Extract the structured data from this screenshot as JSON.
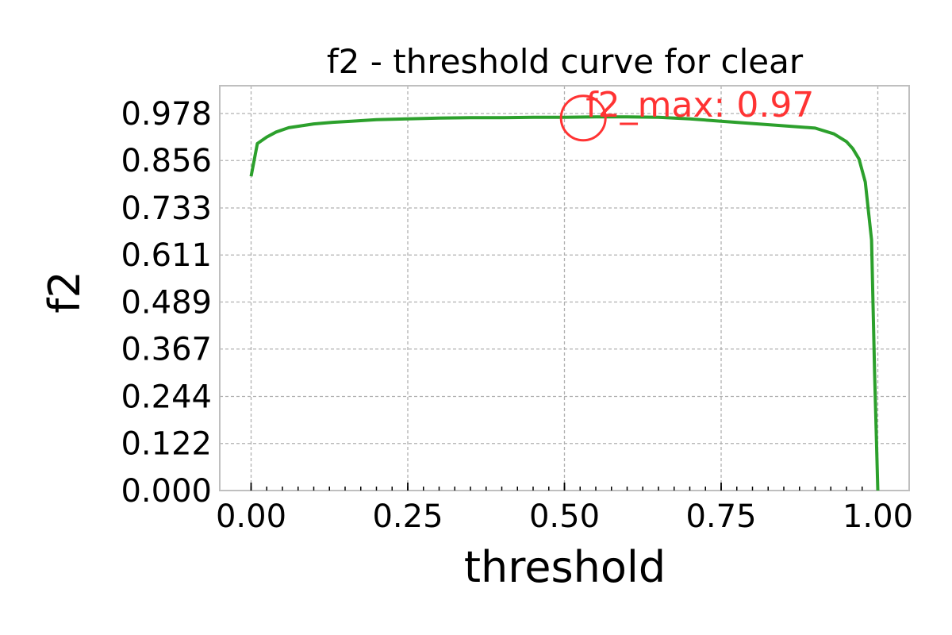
{
  "chart_data": {
    "type": "line",
    "title": "f2 - threshold curve for clear",
    "xlabel": "threshold",
    "ylabel": "f2",
    "xlim": [
      -0.05,
      1.05
    ],
    "ylim": [
      0.0,
      1.05
    ],
    "x_ticks": [
      0.0,
      0.25,
      0.5,
      0.75,
      1.0
    ],
    "x_tick_labels": [
      "0.00",
      "0.25",
      "0.50",
      "0.75",
      "1.00"
    ],
    "x_minor_tick_step": 0.025,
    "y_ticks": [
      0.0,
      0.122,
      0.244,
      0.367,
      0.489,
      0.611,
      0.733,
      0.856,
      0.978
    ],
    "y_tick_labels": [
      "0.000",
      "0.122",
      "0.244",
      "0.367",
      "0.489",
      "0.611",
      "0.733",
      "0.856",
      "0.978"
    ],
    "grid": true,
    "grid_style": "dashed",
    "series": [
      {
        "color": "#2ca02c",
        "x": [
          0.0,
          0.01,
          0.025,
          0.04,
          0.06,
          0.08,
          0.1,
          0.13,
          0.16,
          0.2,
          0.25,
          0.3,
          0.35,
          0.4,
          0.45,
          0.5,
          0.55,
          0.6,
          0.65,
          0.7,
          0.75,
          0.8,
          0.85,
          0.9,
          0.93,
          0.95,
          0.96,
          0.97,
          0.98,
          0.99,
          0.995,
          1.0
        ],
        "y": [
          0.815,
          0.9,
          0.917,
          0.93,
          0.941,
          0.946,
          0.951,
          0.955,
          0.958,
          0.962,
          0.964,
          0.966,
          0.967,
          0.967,
          0.968,
          0.968,
          0.969,
          0.969,
          0.968,
          0.964,
          0.958,
          0.952,
          0.946,
          0.94,
          0.925,
          0.905,
          0.887,
          0.86,
          0.8,
          0.65,
          0.3,
          0.0
        ]
      }
    ],
    "annotation": {
      "text": "f2_max: 0.97",
      "color": "#ff3333",
      "x": 0.53,
      "y": 0.966
    }
  }
}
